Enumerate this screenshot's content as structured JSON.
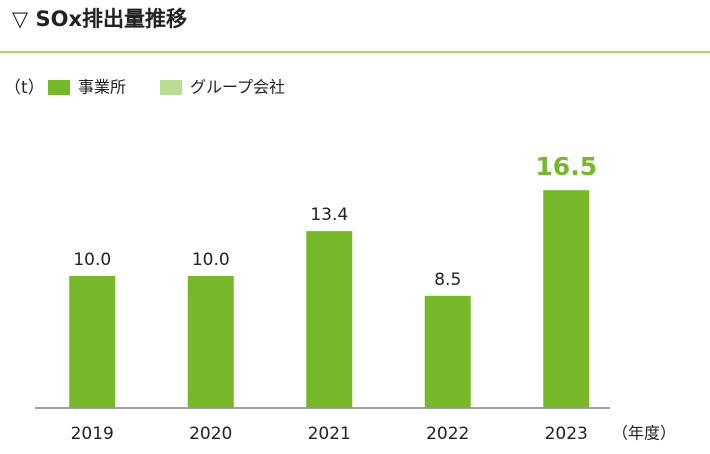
{
  "chart_data": {
    "type": "bar",
    "title": "▽ SOx排出量推移",
    "y_label": "（t）",
    "x_label": "（年度）",
    "categories": [
      "2019",
      "2020",
      "2021",
      "2022",
      "2023"
    ],
    "series": [
      {
        "name": "事業所",
        "color": "#76b82a",
        "values": [
          10.0,
          10.0,
          13.4,
          8.5,
          16.5
        ],
        "value_labels": [
          "10.0",
          "10.0",
          "13.4",
          "8.5",
          "16.5"
        ]
      },
      {
        "name": "グループ会社",
        "color": "#b8dd95",
        "values": [
          null,
          null,
          null,
          null,
          null
        ]
      }
    ],
    "ylim": [
      0,
      20
    ]
  }
}
